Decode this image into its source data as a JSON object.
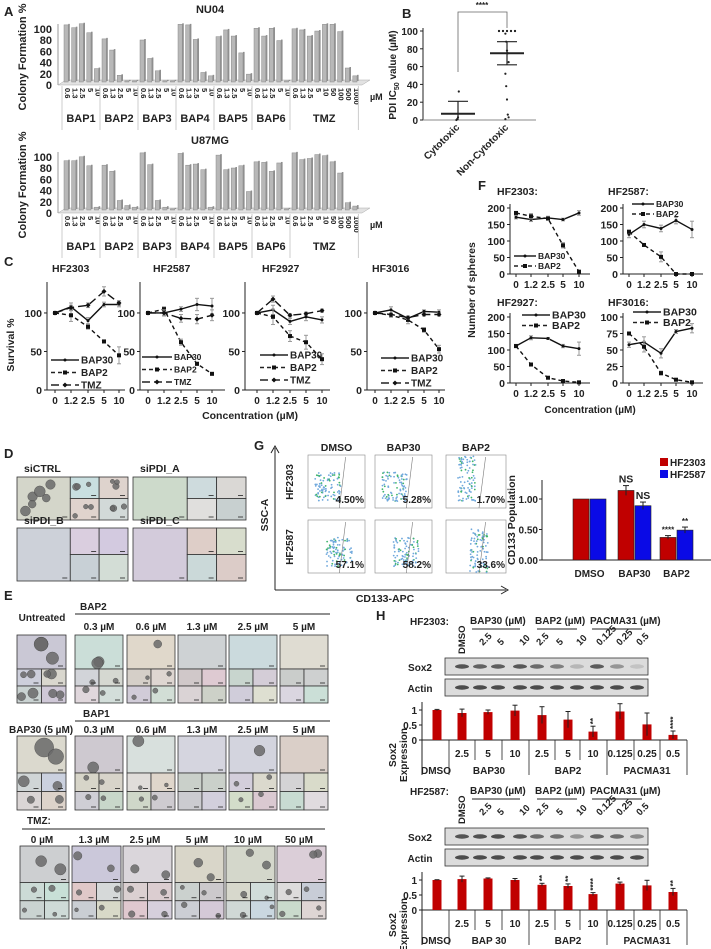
{
  "panels": {
    "A": "A",
    "B": "B",
    "C": "C",
    "D": "D",
    "E": "E",
    "F": "F",
    "G": "G",
    "H": "H"
  },
  "chart_data": [
    {
      "id": "A_NU04",
      "type": "bar",
      "title": "NU04",
      "xlabel": "",
      "ylabel": "Colony Formation %",
      "ylim": [
        0,
        100
      ],
      "yticks": [
        0,
        20,
        40,
        60,
        80,
        100
      ],
      "unit_label": "µM",
      "groups": [
        {
          "name": "BAP1",
          "categories": [
            "0.6",
            "1.3",
            "2.5",
            "5",
            "10"
          ],
          "values": [
            102,
            97,
            104,
            88,
            24
          ]
        },
        {
          "name": "BAP2",
          "categories": [
            "0.6",
            "1.3",
            "2.5",
            "5",
            "10"
          ],
          "values": [
            77,
            57,
            12,
            2,
            2
          ]
        },
        {
          "name": "BAP3",
          "categories": [
            "0.6",
            "1.3",
            "2.5",
            "5",
            "10"
          ],
          "values": [
            75,
            42,
            20,
            2,
            2
          ]
        },
        {
          "name": "BAP4",
          "categories": [
            "0.6",
            "1.3",
            "2.5",
            "5",
            "10"
          ],
          "values": [
            103,
            102,
            76,
            17,
            11
          ]
        },
        {
          "name": "BAP5",
          "categories": [
            "0.6",
            "1.3",
            "2.5",
            "5",
            "10"
          ],
          "values": [
            81,
            93,
            82,
            52,
            14
          ]
        },
        {
          "name": "BAP6",
          "categories": [
            "0.6",
            "1.3",
            "2.5",
            "5",
            "10"
          ],
          "values": [
            96,
            82,
            96,
            74,
            2
          ]
        },
        {
          "name": "TMZ",
          "categories": [
            "0.6",
            "1.3",
            "2.5",
            "5",
            "10",
            "50",
            "100",
            "500",
            "1000"
          ],
          "values": [
            95,
            93,
            82,
            91,
            103,
            103,
            90,
            25,
            11
          ]
        }
      ]
    },
    {
      "id": "A_U87MG",
      "type": "bar",
      "title": "U87MG",
      "xlabel": "",
      "ylabel": "Colony Formation %",
      "ylim": [
        0,
        100
      ],
      "yticks": [
        0,
        20,
        40,
        60,
        80,
        100
      ],
      "unit_label": "µM",
      "groups": [
        {
          "name": "BAP1",
          "categories": [
            "0.6",
            "1.3",
            "2.5",
            "5",
            "10"
          ],
          "values": [
            88,
            88,
            95,
            79,
            5
          ]
        },
        {
          "name": "BAP2",
          "categories": [
            "0.6",
            "1.3",
            "2.5",
            "5",
            "10"
          ],
          "values": [
            80,
            69,
            17,
            8,
            5
          ]
        },
        {
          "name": "BAP3",
          "categories": [
            "0.6",
            "1.3",
            "2.5",
            "5",
            "10"
          ],
          "values": [
            102,
            81,
            17,
            5,
            2
          ]
        },
        {
          "name": "BAP4",
          "categories": [
            "0.6",
            "1.3",
            "2.5",
            "5",
            "10"
          ],
          "values": [
            101,
            80,
            82,
            72,
            5
          ]
        },
        {
          "name": "BAP5",
          "categories": [
            "0.6",
            "1.3",
            "2.5",
            "5",
            "10"
          ],
          "values": [
            98,
            72,
            75,
            79,
            33
          ]
        },
        {
          "name": "BAP6",
          "categories": [
            "0.6",
            "1.3",
            "2.5",
            "5",
            "10"
          ],
          "values": [
            86,
            85,
            69,
            84,
            2
          ]
        },
        {
          "name": "TMZ",
          "categories": [
            "0.6",
            "1.3",
            "2.5",
            "5",
            "10",
            "50",
            "100",
            "500",
            "1000"
          ],
          "values": [
            102,
            90,
            92,
            99,
            97,
            86,
            66,
            13,
            7
          ]
        }
      ]
    },
    {
      "id": "B",
      "type": "scatter",
      "title": "",
      "ylabel_parts": [
        "PDI IC",
        "50",
        " value (µM)"
      ],
      "ylim": [
        0,
        100
      ],
      "yticks": [
        0,
        20,
        40,
        60,
        80,
        100
      ],
      "categories": [
        "Cytotoxic",
        "Non-Cytotoxic"
      ],
      "significance": "****",
      "series": [
        {
          "name": "Cytotoxic",
          "points": [
            0,
            1,
            3,
            32
          ],
          "mean": 7,
          "err_upper": 21,
          "err_lower": 0
        },
        {
          "name": "Non-Cytotoxic",
          "points": [
            100,
            100,
            100,
            100,
            100,
            100,
            100,
            100,
            100,
            100,
            97,
            88,
            78,
            75,
            65,
            52,
            38,
            23,
            6,
            3,
            1
          ],
          "mean": 75,
          "err_upper": 88,
          "err_lower": 62
        }
      ]
    },
    {
      "id": "C_HF2303",
      "type": "line",
      "title": "HF2303",
      "ylabel": "Survival %",
      "xlabel": "Concentration (µM)",
      "ylim": [
        0,
        135
      ],
      "yticks": [
        0,
        50,
        100
      ],
      "x": [
        "0",
        "1.2",
        "2.5",
        "5",
        "10"
      ],
      "series": [
        {
          "name": "BAP30",
          "values": [
            100,
            108,
            90,
            111,
            111
          ],
          "err": [
            0,
            5,
            4,
            3,
            3
          ]
        },
        {
          "name": "BAP2",
          "values": [
            100,
            97,
            82,
            63,
            45
          ],
          "err": [
            0,
            8,
            3,
            2,
            11
          ]
        },
        {
          "name": "TMZ",
          "values": [
            100,
            107,
            110,
            128,
            113
          ],
          "err": [
            0,
            3,
            3,
            6,
            3
          ]
        }
      ]
    },
    {
      "id": "C_HF2587",
      "type": "line",
      "title": "HF2587",
      "ylabel": "",
      "xlabel": "",
      "ylim": [
        0,
        135
      ],
      "yticks": [
        0,
        50,
        100
      ],
      "x": [
        "0",
        "1.2",
        "2.5",
        "5",
        "10"
      ],
      "series": [
        {
          "name": "BAP30",
          "values": [
            100,
            100,
            105,
            111,
            109
          ],
          "err": [
            0,
            3,
            3,
            8,
            10
          ]
        },
        {
          "name": "BAP2",
          "values": [
            100,
            105,
            62,
            34,
            21
          ],
          "err": [
            0,
            3,
            4,
            2,
            1
          ]
        },
        {
          "name": "TMZ",
          "values": [
            100,
            100,
            93,
            92,
            97
          ],
          "err": [
            0,
            4,
            5,
            6,
            7
          ]
        }
      ]
    },
    {
      "id": "C_HF2927",
      "type": "line",
      "title": "HF2927",
      "ylabel": "",
      "xlabel": "",
      "ylim": [
        0,
        135
      ],
      "yticks": [
        0,
        50,
        100
      ],
      "x": [
        "0",
        "1.2",
        "2.5",
        "5",
        "10"
      ],
      "series": [
        {
          "name": "BAP30",
          "values": [
            100,
            104,
            89,
            95,
            91
          ],
          "err": [
            0,
            6,
            4,
            5,
            4
          ]
        },
        {
          "name": "BAP2",
          "values": [
            100,
            95,
            70,
            62,
            40
          ],
          "err": [
            0,
            10,
            7,
            9,
            7
          ]
        },
        {
          "name": "TMZ",
          "values": [
            100,
            118,
            97,
            99,
            103
          ],
          "err": [
            0,
            4,
            2,
            2,
            2
          ]
        }
      ]
    },
    {
      "id": "C_HF3016",
      "type": "line",
      "title": "HF3016",
      "ylabel": "",
      "xlabel": "",
      "ylim": [
        0,
        135
      ],
      "yticks": [
        0,
        50,
        100
      ],
      "x": [
        "0",
        "1.2",
        "2.5",
        "5",
        "10"
      ],
      "series": [
        {
          "name": "BAP30",
          "values": [
            100,
            104,
            93,
            102,
            101
          ],
          "err": [
            0,
            4,
            3,
            2,
            3
          ]
        },
        {
          "name": "BAP2",
          "values": [
            100,
            97,
            91,
            78,
            53
          ],
          "err": [
            0,
            2,
            5,
            3,
            5
          ]
        },
        {
          "name": "TMZ",
          "values": [
            100,
            98,
            94,
            98,
            98
          ],
          "err": [
            0,
            2,
            2,
            2,
            2
          ]
        }
      ]
    },
    {
      "id": "F_HF2303",
      "type": "line",
      "title": "HF2303:",
      "ylabel": "Number of spheres",
      "xlabel": "Concentration (µM)",
      "ylim": [
        0,
        200
      ],
      "yticks": [
        0,
        50,
        100,
        150,
        200
      ],
      "x": [
        "0",
        "1.2",
        "2.5",
        "5",
        "10"
      ],
      "series": [
        {
          "name": "BAP30",
          "values": [
            172,
            165,
            170,
            165,
            185
          ],
          "err": [
            5,
            6,
            5,
            4,
            7
          ]
        },
        {
          "name": "BAP2",
          "values": [
            185,
            175,
            168,
            87,
            7
          ],
          "err": [
            4,
            8,
            3,
            8,
            2
          ]
        }
      ]
    },
    {
      "id": "F_HF2587",
      "type": "line",
      "title": "HF2587:",
      "ylabel": "",
      "xlabel": "",
      "ylim": [
        0,
        200
      ],
      "yticks": [
        0,
        50,
        100,
        150,
        200
      ],
      "x": [
        "0",
        "1.2",
        "2.5",
        "5",
        "10"
      ],
      "series": [
        {
          "name": "BAP30",
          "values": [
            120,
            150,
            138,
            162,
            135
          ],
          "err": [
            10,
            10,
            10,
            10,
            25
          ]
        },
        {
          "name": "BAP2",
          "values": [
            128,
            88,
            52,
            0,
            0
          ],
          "err": [
            5,
            3,
            15,
            0,
            0
          ]
        }
      ]
    },
    {
      "id": "F_HF2927",
      "type": "line",
      "title": "HF2927:",
      "ylabel": "",
      "xlabel": "",
      "ylim": [
        0,
        200
      ],
      "yticks": [
        0,
        50,
        100,
        150,
        200
      ],
      "x": [
        "0",
        "1.2",
        "2.5",
        "5",
        "10"
      ],
      "series": [
        {
          "name": "BAP30",
          "values": [
            112,
            137,
            135,
            112,
            104
          ],
          "err": [
            5,
            6,
            3,
            5,
            20
          ]
        },
        {
          "name": "BAP2",
          "values": [
            112,
            56,
            16,
            6,
            2
          ],
          "err": [
            3,
            2,
            2,
            1,
            1
          ]
        }
      ]
    },
    {
      "id": "F_HF3016",
      "type": "line",
      "title": "HF3016:",
      "ylabel": "",
      "xlabel": "",
      "ylim": [
        0,
        100
      ],
      "yticks": [
        0,
        25,
        50,
        75,
        100
      ],
      "x": [
        "0",
        "1.2",
        "2.5",
        "5",
        "10"
      ],
      "series": [
        {
          "name": "BAP30",
          "values": [
            58,
            62,
            45,
            78,
            83
          ],
          "err": [
            4,
            8,
            7,
            3,
            7
          ]
        },
        {
          "name": "BAP2",
          "values": [
            75,
            55,
            15,
            5,
            1
          ],
          "err": [
            2,
            8,
            3,
            1,
            1
          ]
        }
      ]
    },
    {
      "id": "G_bar",
      "type": "bar",
      "title": "",
      "ylabel": "CD133 Population",
      "xlabel": "",
      "ylim": [
        0,
        1.25
      ],
      "yticks": [
        "0.00",
        "0.50",
        "1.00"
      ],
      "categories": [
        "DMSO",
        "BAP30",
        "BAP2"
      ],
      "series": [
        {
          "name": "HF2303",
          "color": "#c00000",
          "values": [
            1.0,
            1.14,
            0.37
          ],
          "err": [
            0,
            0.08,
            0.03
          ],
          "annotations": [
            "",
            "NS",
            "****"
          ]
        },
        {
          "name": "HF2587",
          "color": "#0a0ae6",
          "values": [
            1.0,
            0.89,
            0.49
          ],
          "err": [
            0,
            0.06,
            0.05
          ],
          "annotations": [
            "",
            "NS",
            "**"
          ]
        }
      ]
    },
    {
      "id": "H_HF2303",
      "type": "bar",
      "title": "HF2303:",
      "ylabel_lines": [
        "Sox2",
        "Expression"
      ],
      "ylim": [
        0,
        1.3
      ],
      "yticks": [
        "0",
        "0.5",
        "1"
      ],
      "color": "#c00000",
      "groups": [
        {
          "name": "DMSO",
          "categories": [
            ""
          ]
        },
        {
          "name": "BAP30",
          "categories": [
            "2.5",
            "5",
            "10"
          ]
        },
        {
          "name": "BAP2",
          "categories": [
            "2.5",
            "5",
            "10"
          ]
        },
        {
          "name": "PACMA31",
          "categories": [
            "0.125",
            "0.25",
            "0.5"
          ]
        }
      ],
      "values": [
        1.0,
        0.9,
        0.93,
        0.98,
        0.83,
        0.68,
        0.28,
        0.95,
        0.52,
        0.17
      ],
      "err": [
        0.02,
        0.13,
        0.07,
        0.18,
        0.28,
        0.27,
        0.18,
        0.26,
        0.38,
        0.13
      ],
      "annotations": [
        "",
        "",
        "",
        "",
        "",
        "",
        "**",
        "",
        "",
        "****"
      ]
    },
    {
      "id": "H_HF2587",
      "type": "bar",
      "title": "HF2587:",
      "ylabel_lines": [
        "Sox2",
        "Expression"
      ],
      "ylim": [
        0,
        1.3
      ],
      "yticks": [
        "0",
        "0.5",
        "1"
      ],
      "color": "#c00000",
      "groups": [
        {
          "name": "DMSO",
          "categories": [
            ""
          ]
        },
        {
          "name": "BAP 30",
          "categories": [
            "2.5",
            "5",
            "10"
          ]
        },
        {
          "name": "BAP2",
          "categories": [
            "2.5",
            "5",
            "10"
          ]
        },
        {
          "name": "PACMA31",
          "categories": [
            "0.125",
            "0.25",
            "0.5"
          ]
        }
      ],
      "values": [
        1.0,
        1.03,
        1.05,
        1.0,
        0.84,
        0.8,
        0.53,
        0.88,
        0.82,
        0.6
      ],
      "err": [
        0.01,
        0.1,
        0.02,
        0.05,
        0.05,
        0.07,
        0.05,
        0.05,
        0.17,
        0.12
      ],
      "annotations": [
        "",
        "",
        "",
        "",
        "**",
        "**",
        "****",
        "*",
        "",
        "**"
      ]
    }
  ],
  "flow_cytometry": {
    "y_axis": "SSC-A",
    "x_axis": "CD133-APC",
    "columns": [
      "DMSO",
      "BAP30",
      "BAP2"
    ],
    "rows": [
      {
        "name": "HF2303",
        "percents": [
          "4.50%",
          "5.28%",
          "1.70%"
        ]
      },
      {
        "name": "HF2587",
        "percents": [
          "57.1%",
          "58.2%",
          "33.6%"
        ]
      }
    ]
  },
  "western_blots": {
    "lanes": [
      "DMSO",
      "2.5",
      "5",
      "10",
      "2.5",
      "5",
      "10",
      "0.125",
      "0.25",
      "0.5"
    ],
    "group_headers": [
      "BAP30 (µM)",
      "BAP2 (µM)",
      "PACMA31 (µM)"
    ],
    "bands": [
      "Sox2",
      "Actin"
    ]
  },
  "panel_D": {
    "conditions": [
      "siCTRL",
      "siPDI_A",
      "siPDI_B",
      "siPDI_C"
    ]
  },
  "panel_E": {
    "untreated": "Untreated",
    "bap2": {
      "label": "BAP2",
      "concs": [
        "0.3 µM",
        "0.6 µM",
        "1.3 µM",
        "2.5 µM",
        "5 µM"
      ]
    },
    "bap30": "BAP30 (5 µM)",
    "bap1": {
      "label": "BAP1",
      "concs": [
        "0.3 µM",
        "0.6 µM",
        "1.3 µM",
        "2.5 µM",
        "5 µM"
      ]
    },
    "tmz": {
      "label": "TMZ:",
      "concs": [
        "0 µM",
        "1.3 µM",
        "2.5 µM",
        "5 µM",
        "10 µM",
        "50 µM"
      ]
    }
  },
  "colors": {
    "red": "#c00000",
    "blue": "#0a0ae6",
    "bar_gray": "#b8b8b8"
  }
}
